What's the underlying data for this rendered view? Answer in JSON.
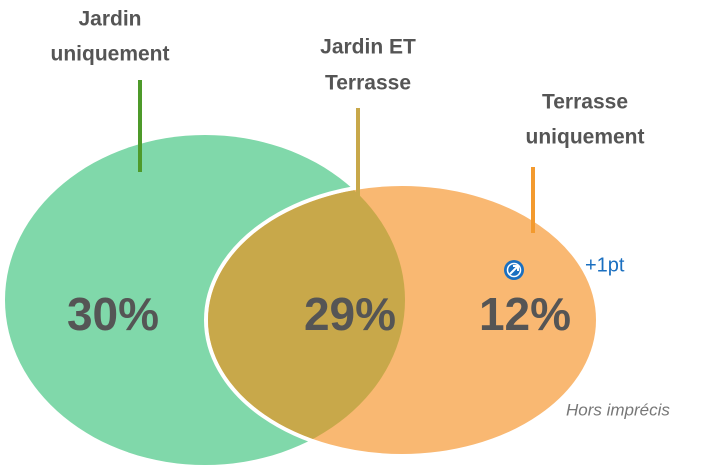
{
  "regions": [
    {
      "label": [
        "Jardin",
        "uniquement"
      ],
      "value": "30%"
    },
    {
      "label": [
        "Jardin ET",
        "Terrasse"
      ],
      "value": "29%"
    },
    {
      "label": [
        "Terrasse",
        "uniquement"
      ],
      "value": "12%"
    }
  ],
  "change": "+1pt",
  "note": "Hors imprécis"
}
